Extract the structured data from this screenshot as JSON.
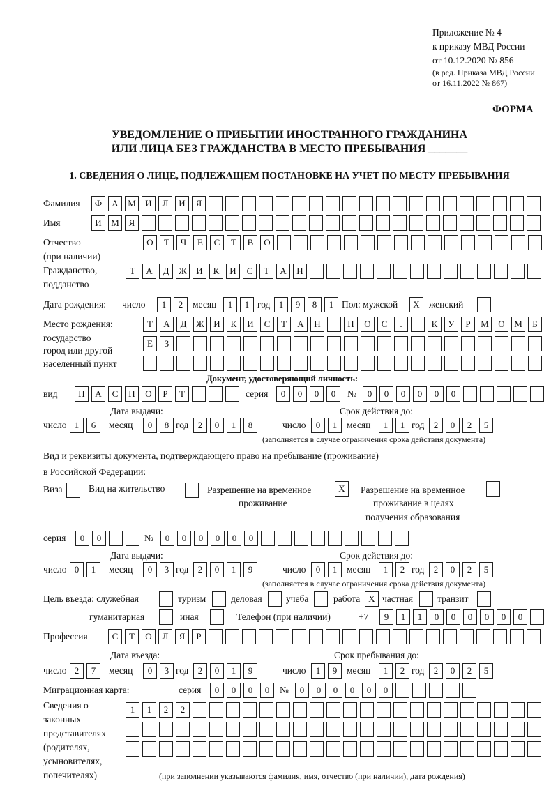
{
  "header": {
    "line1": "Приложение № 4",
    "line2": "к приказу МВД России",
    "line3": "от 10.12.2020 № 856",
    "line4": "(в ред. Приказа МВД России",
    "line5": "от 16.11.2022 № 867)",
    "form": "ФОРМА",
    "title1": "УВЕДОМЛЕНИЕ О ПРИБЫТИИ ИНОСТРАННОГО ГРАЖДАНИНА",
    "title2": "ИЛИ ЛИЦА БЕЗ ГРАЖДАНСТВА В МЕСТО ПРЕБЫВАНИЯ _______",
    "section1": "1. СВЕДЕНИЯ О ЛИЦЕ, ПОДЛЕЖАЩЕМ ПОСТАНОВКЕ НА УЧЕТ ПО МЕСТУ ПРЕБЫВАНИЯ"
  },
  "labels": {
    "surname": "Фамилия",
    "name": "Имя",
    "patronymic": "Отчество",
    "patronymic2": "(при наличии)",
    "citizenship": "Гражданство,",
    "citizenship2": "подданство",
    "birth_date": "Дата рождения:",
    "day": "число",
    "month": "месяц",
    "year": "год",
    "sex": "Пол: мужской",
    "female": "женский",
    "birth_place": "Место рождения:",
    "bp2": "государство",
    "bp3": "город или другой",
    "bp4": "населенный пункт",
    "id_doc": "Документ, удостоверяющий личность:",
    "kind": "вид",
    "series": "серия",
    "number": "№",
    "issue_date": "Дата выдачи:",
    "valid_until": "Срок действия до:",
    "validity_note": "(заполняется в случае ограничения срока действия документа)",
    "stay_doc1": "Вид и реквизиты документа, подтверждающего право на пребывание (проживание)",
    "stay_doc2": "в Российской Федерации:",
    "visa": "Виза",
    "residence": "Вид на жительство",
    "trp1": "Разрешение на временное",
    "trp2": "проживание",
    "trpe1": "Разрешение на временное",
    "trpe2": "проживание в целях",
    "trpe3": "получения образования",
    "purpose": "Цель въезда: служебная",
    "tourism": "туризм",
    "business": "деловая",
    "study": "учеба",
    "work": "работа",
    "private": "частная",
    "transit": "транзит",
    "humanitarian": "гуманитарная",
    "other": "иная",
    "phone": "Телефон (при наличии)",
    "phone_prefix": "+7",
    "profession": "Профессия",
    "entry_date": "Дата въезда:",
    "stay_until": "Срок пребывания до:",
    "migration_card": "Миграционная карта:",
    "reps1": "Сведения о",
    "reps2": "законных",
    "reps3": "представителях",
    "reps4": "(родителях,",
    "reps5": "усыновителях,",
    "reps6": "попечителях)",
    "reps_note": "(при заполнении указываются фамилия, имя, отчество (при наличии), дата рождения)"
  },
  "values": {
    "surname": "ФАМИЛИЯ",
    "name": "ИМЯ",
    "patronymic": "ОТЧЕСТВО",
    "citizenship": "ТАДЖИКИСТАН",
    "birth_day": "12",
    "birth_month": "11",
    "birth_year": "1981",
    "sex_male": "X",
    "sex_female": "",
    "birth_place1": "ТАДЖИКИСТАН ПОС. КУРМОМБ",
    "birth_place2": "ЕЗ",
    "birth_place3": "",
    "id_kind": "ПАСПОРТ",
    "id_series": "0000",
    "id_number": "000000",
    "id_issue_day": "16",
    "id_issue_month": "08",
    "id_issue_year": "2018",
    "id_valid_day": "01",
    "id_valid_month": "11",
    "id_valid_year": "2025",
    "visa": "",
    "residence": "",
    "trp": "X",
    "trpe": "",
    "stay_series": "00",
    "stay_number": "000000",
    "stay_issue_day": "01",
    "stay_issue_month": "03",
    "stay_issue_year": "2019",
    "stay_valid_day": "01",
    "stay_valid_month": "12",
    "stay_valid_year": "2025",
    "p_service": "",
    "p_tourism": "",
    "p_business": "",
    "p_study": "",
    "p_work": "X",
    "p_private": "",
    "p_transit": "",
    "p_humanitarian": "",
    "p_other": "",
    "phone": "911000000",
    "profession": "СТОЛЯР",
    "entry_day": "27",
    "entry_month": "03",
    "entry_year": "2019",
    "until_day": "19",
    "until_month": "12",
    "until_year": "2025",
    "mc_series": "0000",
    "mc_number": "000000",
    "reps1": "1122",
    "reps2": "",
    "reps3": ""
  }
}
